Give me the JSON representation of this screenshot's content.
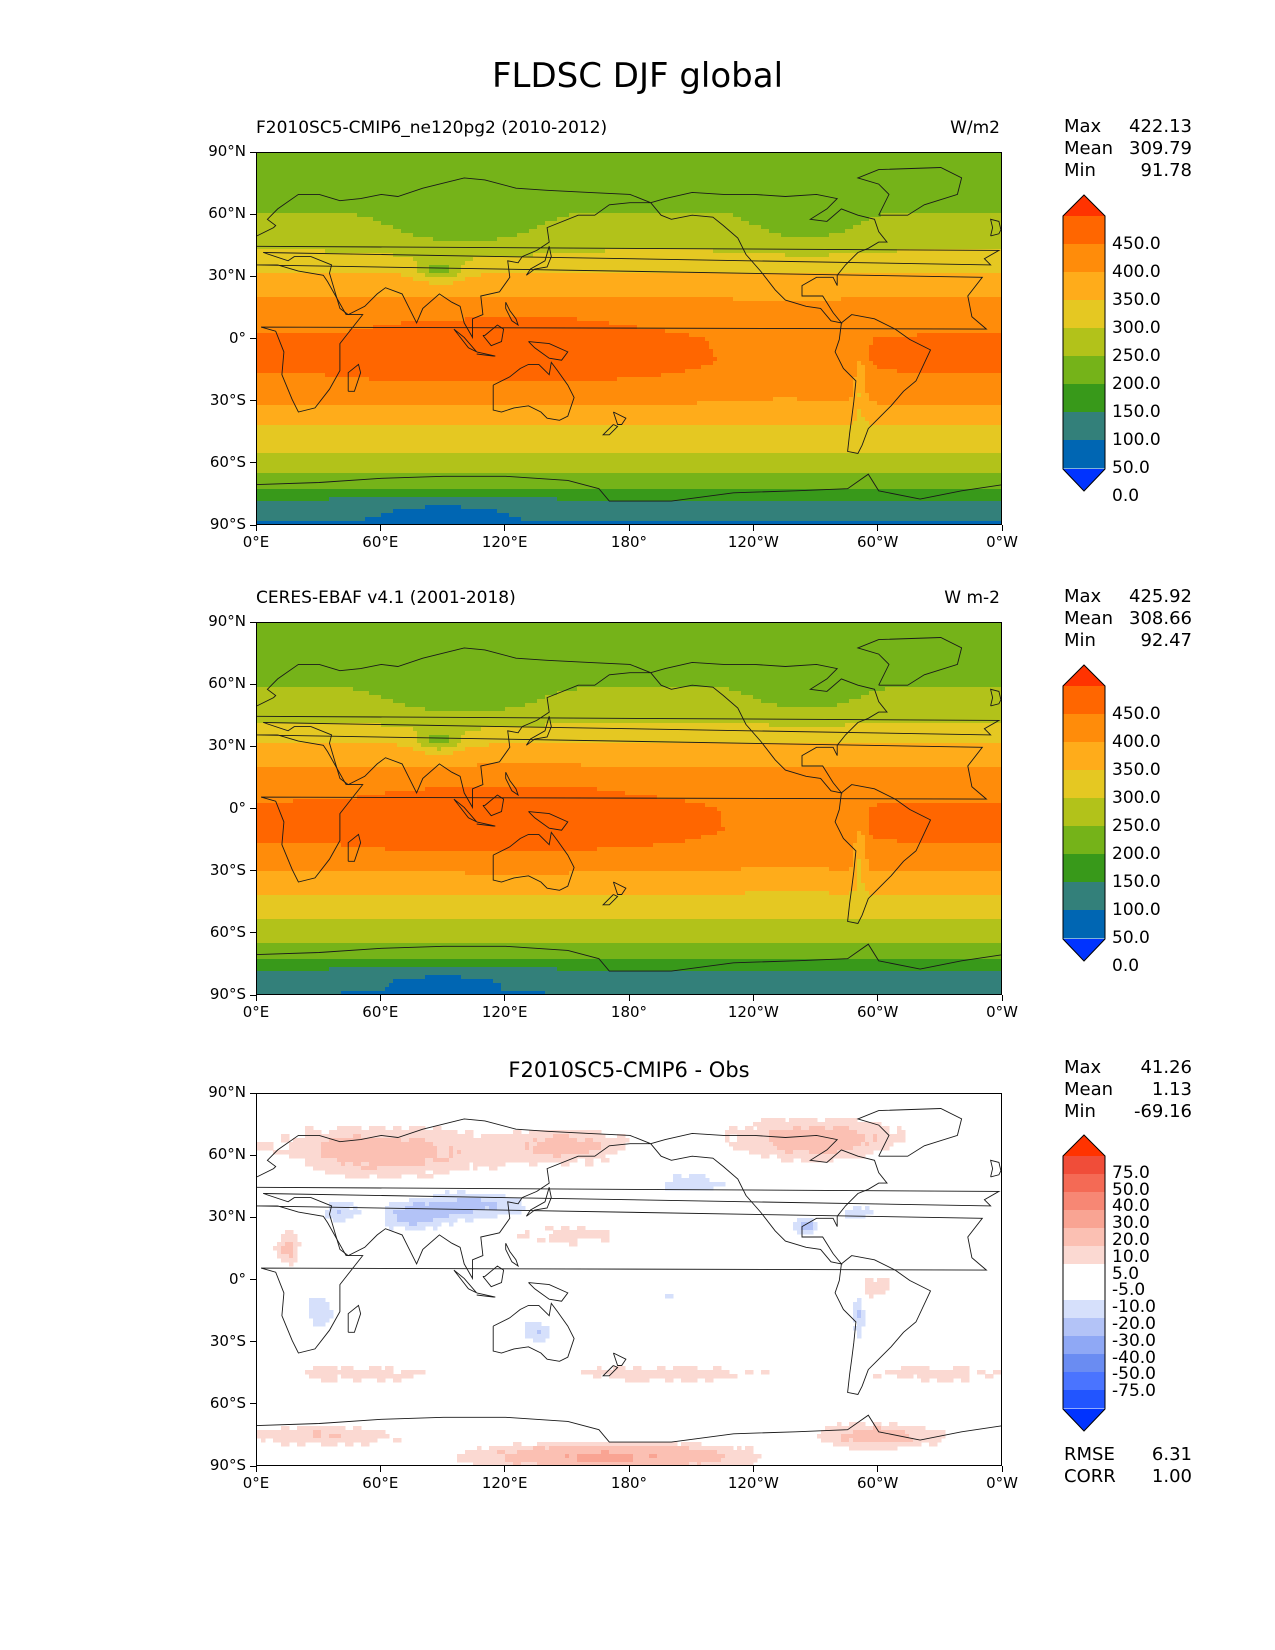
{
  "title": "FLDSC DJF global",
  "colors": {
    "abs_levels": [
      "#0033ff",
      "#0066b3",
      "#33807a",
      "#38991a",
      "#75b319",
      "#b2c21a",
      "#e5c822",
      "#ffac1a",
      "#ff8c0a",
      "#ff6600",
      "#ff3300"
    ],
    "diff_levels": [
      "#0033ff",
      "#2255ff",
      "#4a74ff",
      "#6a8cf2",
      "#8fa8f5",
      "#b3c3f7",
      "#d6e0fb",
      "#ffffff",
      "#ffffff",
      "#fbd9d2",
      "#fbc0b3",
      "#f9a493",
      "#f78774",
      "#f46a55",
      "#f04d39",
      "#ff3300"
    ]
  },
  "axes": {
    "yticks": [
      "90°N",
      "60°N",
      "30°N",
      "0°",
      "30°S",
      "60°S",
      "90°S"
    ],
    "xticks": [
      "0°E",
      "60°E",
      "120°E",
      "180°",
      "120°W",
      "60°W",
      "0°W"
    ]
  },
  "panels": [
    {
      "title_left": "F2010SC5-CMIP6_ne120pg2 (2010-2012)",
      "title_right": "W/m2",
      "stats": {
        "max_label": "Max",
        "max": "422.13",
        "mean_label": "Mean",
        "mean": "309.79",
        "min_label": "Min",
        "min": "91.78"
      },
      "colorbar_labels": [
        "450.0",
        "400.0",
        "350.0",
        "300.0",
        "250.0",
        "200.0",
        "150.0",
        "100.0",
        "50.0",
        "0.0"
      ]
    },
    {
      "title_left": "CERES-EBAF v4.1 (2001-2018)",
      "title_right": "W m-2",
      "stats": {
        "max_label": "Max",
        "max": "425.92",
        "mean_label": "Mean",
        "mean": "308.66",
        "min_label": "Min",
        "min": "92.47"
      },
      "colorbar_labels": [
        "450.0",
        "400.0",
        "350.0",
        "300.0",
        "250.0",
        "200.0",
        "150.0",
        "100.0",
        "50.0",
        "0.0"
      ]
    },
    {
      "title_center": "F2010SC5-CMIP6 - Obs",
      "stats": {
        "max_label": "Max",
        "max": "41.26",
        "mean_label": "Mean",
        "mean": "1.13",
        "min_label": "Min",
        "min": "-69.16"
      },
      "colorbar_labels": [
        "75.0",
        "50.0",
        "40.0",
        "30.0",
        "20.0",
        "10.0",
        "5.0",
        "-5.0",
        "-10.0",
        "-20.0",
        "-30.0",
        "-40.0",
        "-50.0",
        "-75.0"
      ],
      "metrics": {
        "rmse_label": "RMSE",
        "rmse": "6.31",
        "corr_label": "CORR",
        "corr": "1.00"
      }
    }
  ],
  "chart_data": [
    {
      "type": "heatmap",
      "title": "F2010SC5-CMIP6_ne120pg2 (2010-2012)",
      "units": "W/m2",
      "variable": "FLDSC",
      "season": "DJF",
      "x_range": [
        0,
        360
      ],
      "y_range": [
        -90,
        90
      ],
      "levels": [
        0,
        50,
        100,
        150,
        200,
        250,
        300,
        350,
        400,
        450
      ],
      "zonal_profile": {
        "lat": [
          -90,
          -80,
          -70,
          -60,
          -50,
          -40,
          -30,
          -20,
          -10,
          0,
          10,
          20,
          30,
          40,
          50,
          60,
          70,
          80,
          90
        ],
        "value": [
          120,
          130,
          170,
          230,
          265,
          305,
          355,
          395,
          410,
          405,
          385,
          350,
          310,
          260,
          225,
          205,
          180,
          170,
          165
        ]
      },
      "max": 422.13,
      "mean": 309.79,
      "min": 91.78
    },
    {
      "type": "heatmap",
      "title": "CERES-EBAF v4.1 (2001-2018)",
      "units": "W m-2",
      "variable": "FLDSC",
      "season": "DJF",
      "x_range": [
        0,
        360
      ],
      "y_range": [
        -90,
        90
      ],
      "levels": [
        0,
        50,
        100,
        150,
        200,
        250,
        300,
        350,
        400,
        450
      ],
      "zonal_profile": {
        "lat": [
          -90,
          -80,
          -70,
          -60,
          -50,
          -40,
          -30,
          -20,
          -10,
          0,
          10,
          20,
          30,
          40,
          50,
          60,
          70,
          80,
          90
        ],
        "value": [
          125,
          130,
          170,
          228,
          262,
          303,
          352,
          393,
          412,
          408,
          388,
          352,
          308,
          258,
          222,
          200,
          175,
          165,
          160
        ]
      },
      "max": 425.92,
      "mean": 308.66,
      "min": 92.47
    },
    {
      "type": "heatmap",
      "title": "F2010SC5-CMIP6 - Obs",
      "variable": "FLDSC difference",
      "season": "DJF",
      "x_range": [
        0,
        360
      ],
      "y_range": [
        -90,
        90
      ],
      "levels": [
        -75,
        -50,
        -40,
        -30,
        -20,
        -10,
        -5,
        5,
        10,
        20,
        30,
        40,
        50,
        75
      ],
      "max": 41.26,
      "mean": 1.13,
      "min": -69.16,
      "rmse": 6.31,
      "corr": 1.0
    }
  ]
}
